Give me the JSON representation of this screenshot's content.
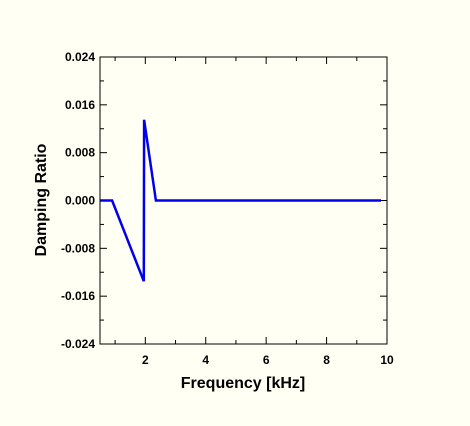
{
  "chart_data": {
    "type": "line",
    "title": "",
    "xlabel": "Frequency [kHz]",
    "ylabel": "Damping Ratio",
    "xlim": [
      0.5,
      10
    ],
    "ylim": [
      -0.024,
      0.024
    ],
    "x_ticks": [
      2,
      4,
      6,
      8,
      10
    ],
    "x_tick_labels": [
      "2",
      "4",
      "6",
      "8",
      "10"
    ],
    "y_ticks": [
      0.024,
      0.016,
      0.008,
      0.0,
      -0.008,
      -0.016,
      -0.024
    ],
    "y_tick_labels": [
      "0.024",
      "0.016",
      "0.008",
      "0.000",
      "-0.008",
      "-0.016",
      "-0.024"
    ],
    "grid": false,
    "legend": "none",
    "line_color": "#0000ee",
    "series": [
      {
        "x": [
          0.5,
          0.9,
          1.95,
          1.96,
          2.35,
          9.8
        ],
        "y": [
          0.0,
          0.0,
          -0.0135,
          0.0135,
          0.0,
          0.0
        ]
      }
    ]
  }
}
